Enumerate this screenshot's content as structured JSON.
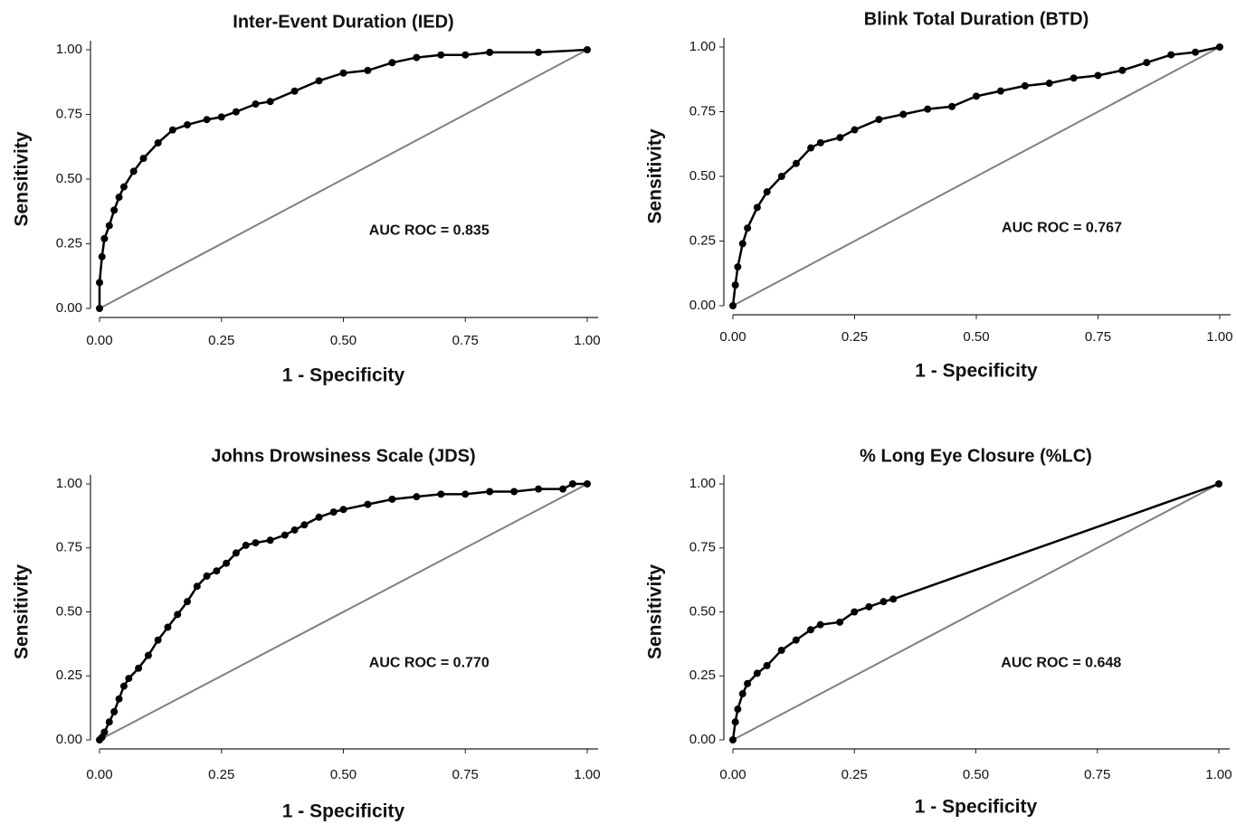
{
  "chart_data": [
    {
      "type": "line",
      "title": "Inter-Event Duration (IED)",
      "x_label": "1 - Specificity",
      "y_label": "Sensitivity",
      "annotation": "AUC ROC = 0.835",
      "color": "#000000",
      "series": [
        {
          "x": [
            0,
            0,
            0.005,
            0.01,
            0.02,
            0.03,
            0.04,
            0.05,
            0.07,
            0.09,
            0.12,
            0.15,
            0.18,
            0.22,
            0.25,
            0.28,
            0.32,
            0.35,
            0.4,
            0.45,
            0.5,
            0.55,
            0.6,
            0.65,
            0.7,
            0.75,
            0.8,
            0.9,
            1.0
          ],
          "values": [
            0,
            0.1,
            0.2,
            0.27,
            0.32,
            0.38,
            0.43,
            0.47,
            0.53,
            0.58,
            0.64,
            0.69,
            0.71,
            0.73,
            0.74,
            0.76,
            0.79,
            0.8,
            0.84,
            0.88,
            0.91,
            0.92,
            0.95,
            0.97,
            0.98,
            0.98,
            0.99,
            0.99,
            1.0
          ]
        }
      ],
      "xlim": [
        0,
        1
      ],
      "ylim": [
        0,
        1
      ],
      "xticks": [
        {
          "value": 0,
          "label": "0.00"
        },
        {
          "value": 0.25,
          "label": "0.25"
        },
        {
          "value": 0.5,
          "label": "0.50"
        },
        {
          "value": 0.75,
          "label": "0.75"
        },
        {
          "value": 1,
          "label": "1.00"
        }
      ],
      "yticks": [
        {
          "value": 0,
          "label": "0.00"
        },
        {
          "value": 0.25,
          "label": "0.25"
        },
        {
          "value": 0.5,
          "label": "0.50"
        },
        {
          "value": 0.75,
          "label": "0.75"
        },
        {
          "value": 1,
          "label": "1.00"
        }
      ]
    },
    {
      "type": "line",
      "title": "Blink Total Duration (BTD)",
      "x_label": "1 - Specificity",
      "y_label": "Sensitivity",
      "annotation": "AUC ROC = 0.767",
      "color": "#000000",
      "series": [
        {
          "x": [
            0,
            0.005,
            0.01,
            0.02,
            0.03,
            0.05,
            0.07,
            0.1,
            0.13,
            0.16,
            0.18,
            0.22,
            0.25,
            0.3,
            0.35,
            0.4,
            0.45,
            0.5,
            0.55,
            0.6,
            0.65,
            0.7,
            0.75,
            0.8,
            0.85,
            0.9,
            0.95,
            1.0
          ],
          "values": [
            0,
            0.08,
            0.15,
            0.24,
            0.3,
            0.38,
            0.44,
            0.5,
            0.55,
            0.61,
            0.63,
            0.65,
            0.68,
            0.72,
            0.74,
            0.76,
            0.77,
            0.81,
            0.83,
            0.85,
            0.86,
            0.88,
            0.89,
            0.91,
            0.94,
            0.97,
            0.98,
            1.0
          ]
        }
      ],
      "xlim": [
        0,
        1
      ],
      "ylim": [
        0,
        1
      ],
      "xticks": [
        {
          "value": 0,
          "label": "0.00"
        },
        {
          "value": 0.25,
          "label": "0.25"
        },
        {
          "value": 0.5,
          "label": "0.50"
        },
        {
          "value": 0.75,
          "label": "0.75"
        },
        {
          "value": 1,
          "label": "1.00"
        }
      ],
      "yticks": [
        {
          "value": 0,
          "label": "0.00"
        },
        {
          "value": 0.25,
          "label": "0.25"
        },
        {
          "value": 0.5,
          "label": "0.50"
        },
        {
          "value": 0.75,
          "label": "0.75"
        },
        {
          "value": 1,
          "label": "1.00"
        }
      ]
    },
    {
      "type": "line",
      "title": "Johns Drowsiness Scale (JDS)",
      "x_label": "1 - Specificity",
      "y_label": "Sensitivity",
      "annotation": "AUC ROC = 0.770",
      "color": "#000000",
      "series": [
        {
          "x": [
            0,
            0.005,
            0.01,
            0.02,
            0.03,
            0.04,
            0.05,
            0.06,
            0.08,
            0.1,
            0.12,
            0.14,
            0.16,
            0.18,
            0.2,
            0.22,
            0.24,
            0.26,
            0.28,
            0.3,
            0.32,
            0.35,
            0.38,
            0.4,
            0.42,
            0.45,
            0.48,
            0.5,
            0.55,
            0.6,
            0.65,
            0.7,
            0.75,
            0.8,
            0.85,
            0.9,
            0.95,
            0.97,
            1.0
          ],
          "values": [
            0,
            0.01,
            0.03,
            0.07,
            0.11,
            0.16,
            0.21,
            0.24,
            0.28,
            0.33,
            0.39,
            0.44,
            0.49,
            0.54,
            0.6,
            0.64,
            0.66,
            0.69,
            0.73,
            0.76,
            0.77,
            0.78,
            0.8,
            0.82,
            0.84,
            0.87,
            0.89,
            0.9,
            0.92,
            0.94,
            0.95,
            0.96,
            0.96,
            0.97,
            0.97,
            0.98,
            0.98,
            1.0,
            1.0
          ]
        }
      ],
      "xlim": [
        0,
        1
      ],
      "ylim": [
        0,
        1
      ],
      "xticks": [
        {
          "value": 0,
          "label": "0.00"
        },
        {
          "value": 0.25,
          "label": "0.25"
        },
        {
          "value": 0.5,
          "label": "0.50"
        },
        {
          "value": 0.75,
          "label": "0.75"
        },
        {
          "value": 1,
          "label": "1.00"
        }
      ],
      "yticks": [
        {
          "value": 0,
          "label": "0.00"
        },
        {
          "value": 0.25,
          "label": "0.25"
        },
        {
          "value": 0.5,
          "label": "0.50"
        },
        {
          "value": 0.75,
          "label": "0.75"
        },
        {
          "value": 1,
          "label": "1.00"
        }
      ]
    },
    {
      "type": "line",
      "title": "% Long Eye Closure (%LC)",
      "x_label": "1 - Specificity",
      "y_label": "Sensitivity",
      "annotation": "AUC ROC = 0.648",
      "color": "#000000",
      "series": [
        {
          "x": [
            0,
            0.005,
            0.01,
            0.02,
            0.03,
            0.05,
            0.07,
            0.1,
            0.13,
            0.16,
            0.18,
            0.22,
            0.25,
            0.28,
            0.31,
            0.33,
            1.0
          ],
          "values": [
            0,
            0.07,
            0.12,
            0.18,
            0.22,
            0.26,
            0.29,
            0.35,
            0.39,
            0.43,
            0.45,
            0.46,
            0.5,
            0.52,
            0.54,
            0.55,
            1.0
          ]
        }
      ],
      "xlim": [
        0,
        1
      ],
      "ylim": [
        0,
        1
      ],
      "xticks": [
        {
          "value": 0,
          "label": "0.00"
        },
        {
          "value": 0.25,
          "label": "0.25"
        },
        {
          "value": 0.5,
          "label": "0.50"
        },
        {
          "value": 0.75,
          "label": "0.75"
        },
        {
          "value": 1,
          "label": "1.00"
        }
      ],
      "yticks": [
        {
          "value": 0,
          "label": "0.00"
        },
        {
          "value": 0.25,
          "label": "0.25"
        },
        {
          "value": 0.5,
          "label": "0.50"
        },
        {
          "value": 0.75,
          "label": "0.75"
        },
        {
          "value": 1,
          "label": "1.00"
        }
      ]
    }
  ]
}
